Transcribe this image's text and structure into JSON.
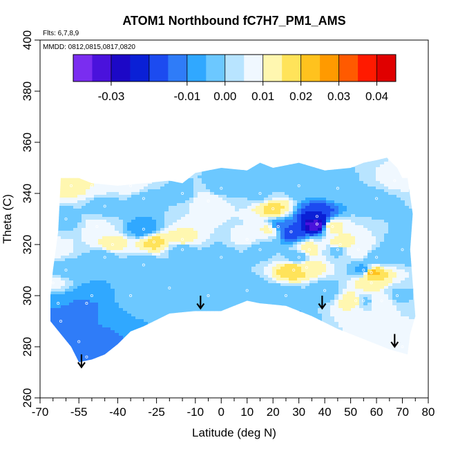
{
  "chart_data": {
    "type": "heatmap",
    "title": "ATOM1 Northbound fC7H7_PM1_AMS",
    "annotations": [
      "Flts: 6,7,8,9",
      "MMDD: 0812,0815,0817,0820"
    ],
    "xlabel": "Latitude (deg N)",
    "ylabel": "Theta (C)",
    "xlim": [
      -70,
      80
    ],
    "ylim": [
      260,
      400
    ],
    "x_ticks": [
      -70,
      -55,
      -40,
      -25,
      -10,
      0,
      10,
      20,
      30,
      40,
      50,
      60,
      70,
      80
    ],
    "x_tick_labels": [
      "-70",
      "-55",
      "-40",
      "-25",
      "-10",
      "0",
      "10",
      "20",
      "30",
      "40",
      "50",
      "60",
      "70",
      "80"
    ],
    "x_minor_ticks": [
      -65,
      -60,
      -50,
      -45,
      -35,
      -30,
      -20,
      -15,
      -5,
      5,
      15,
      25,
      35,
      45,
      55,
      65,
      75
    ],
    "y_ticks": [
      260,
      280,
      300,
      320,
      340,
      360,
      380,
      400
    ],
    "y_tick_labels": [
      "260",
      "280",
      "300",
      "320",
      "340",
      "360",
      "380",
      "400"
    ],
    "colorbar": {
      "min": -0.04,
      "max": 0.045,
      "tick_values": [
        -0.03,
        -0.01,
        0.0,
        0.01,
        0.02,
        0.03,
        0.04
      ],
      "tick_labels": [
        "-0.03",
        "-0.01",
        "0.00",
        "0.01",
        "0.02",
        "0.03",
        "0.04"
      ],
      "boundaries": [
        -0.04,
        -0.035,
        -0.03,
        -0.025,
        -0.02,
        -0.015,
        -0.01,
        -0.005,
        0.0,
        0.005,
        0.01,
        0.015,
        0.02,
        0.025,
        0.03,
        0.035,
        0.04,
        0.045
      ],
      "colors": [
        "#7a2df0",
        "#4a12dc",
        "#1c08c6",
        "#0a20d6",
        "#1c4bf0",
        "#2f7cf8",
        "#30a8ff",
        "#6cc8ff",
        "#b8e4ff",
        "#f0f8ff",
        "#fff7b0",
        "#ffe35a",
        "#ffc21e",
        "#ff9a00",
        "#ff5a00",
        "#ff1a00",
        "#e00000",
        "#b31313"
      ]
    },
    "boundary_upper": [
      [
        -66,
        300
      ],
      [
        -65,
        310
      ],
      [
        -63,
        325
      ],
      [
        -62,
        346
      ],
      [
        -55,
        346
      ],
      [
        -50,
        344
      ],
      [
        -40,
        343
      ],
      [
        -30,
        344
      ],
      [
        -20,
        345
      ],
      [
        -15,
        344
      ],
      [
        -10,
        348
      ],
      [
        0,
        350
      ],
      [
        10,
        349
      ],
      [
        15,
        352
      ],
      [
        20,
        350
      ],
      [
        30,
        352
      ],
      [
        40,
        349
      ],
      [
        50,
        350
      ],
      [
        55,
        352
      ],
      [
        60,
        353
      ],
      [
        64,
        354
      ],
      [
        68,
        350
      ],
      [
        70,
        346
      ],
      [
        72,
        346
      ]
    ],
    "boundary_right": [
      [
        72,
        346
      ],
      [
        74,
        332
      ],
      [
        73,
        318
      ],
      [
        74,
        305
      ],
      [
        75,
        292
      ],
      [
        73,
        285
      ],
      [
        72,
        277
      ]
    ],
    "boundary_lower": [
      [
        72,
        277
      ],
      [
        65,
        279
      ],
      [
        55,
        283
      ],
      [
        45,
        287
      ],
      [
        35,
        292
      ],
      [
        25,
        296
      ],
      [
        15,
        297
      ],
      [
        10,
        298
      ],
      [
        5,
        296
      ],
      [
        0,
        294
      ],
      [
        -10,
        294
      ],
      [
        -20,
        293
      ],
      [
        -30,
        288
      ],
      [
        -35,
        286
      ],
      [
        -40,
        281
      ],
      [
        -45,
        277
      ],
      [
        -50,
        275
      ],
      [
        -55,
        274
      ],
      [
        -58,
        280
      ],
      [
        -62,
        285
      ],
      [
        -66,
        290
      ]
    ],
    "samples": [
      {
        "lat": -60,
        "theta": 330,
        "value": -0.002
      },
      {
        "lat": -45,
        "theta": 335,
        "value": -0.003
      },
      {
        "lat": -30,
        "theta": 338,
        "value": -0.002
      },
      {
        "lat": -15,
        "theta": 340,
        "value": -0.001
      },
      {
        "lat": 0,
        "theta": 342,
        "value": -0.002
      },
      {
        "lat": 15,
        "theta": 340,
        "value": -0.001
      },
      {
        "lat": 30,
        "theta": 343,
        "value": -0.003
      },
      {
        "lat": 45,
        "theta": 342,
        "value": -0.001
      },
      {
        "lat": 60,
        "theta": 338,
        "value": -0.002
      },
      {
        "lat": -60,
        "theta": 310,
        "value": -0.004
      },
      {
        "lat": -45,
        "theta": 315,
        "value": -0.003
      },
      {
        "lat": -30,
        "theta": 312,
        "value": -0.004
      },
      {
        "lat": -15,
        "theta": 318,
        "value": -0.003
      },
      {
        "lat": 0,
        "theta": 315,
        "value": -0.004
      },
      {
        "lat": 15,
        "theta": 318,
        "value": -0.002
      },
      {
        "lat": 30,
        "theta": 315,
        "value": -0.004
      },
      {
        "lat": 45,
        "theta": 318,
        "value": -0.003
      },
      {
        "lat": 60,
        "theta": 315,
        "value": -0.004
      },
      {
        "lat": -50,
        "theta": 300,
        "value": -0.006
      },
      {
        "lat": -35,
        "theta": 300,
        "value": -0.004
      },
      {
        "lat": -20,
        "theta": 303,
        "value": -0.003
      },
      {
        "lat": -5,
        "theta": 300,
        "value": -0.003
      },
      {
        "lat": 10,
        "theta": 302,
        "value": -0.003
      },
      {
        "lat": 25,
        "theta": 300,
        "value": -0.004
      },
      {
        "lat": 40,
        "theta": 302,
        "value": -0.003
      },
      {
        "lat": 55,
        "theta": 298,
        "value": -0.002
      },
      {
        "lat": 68,
        "theta": 300,
        "value": -0.001
      },
      {
        "lat": -62,
        "theta": 290,
        "value": -0.012
      },
      {
        "lat": -55,
        "theta": 282,
        "value": -0.011
      },
      {
        "lat": -52,
        "theta": 276,
        "value": -0.013
      },
      {
        "lat": -52,
        "theta": 297,
        "value": -0.011
      },
      {
        "lat": -63,
        "theta": 297,
        "value": -0.01
      },
      {
        "lat": -30,
        "theta": 326,
        "value": -0.008
      },
      {
        "lat": 22,
        "theta": 327,
        "value": -0.012
      },
      {
        "lat": 27,
        "theta": 325,
        "value": -0.018
      },
      {
        "lat": 37,
        "theta": 328,
        "value": -0.034
      },
      {
        "lat": 37,
        "theta": 331,
        "value": -0.02
      },
      {
        "lat": 55,
        "theta": 310,
        "value": -0.008
      },
      {
        "lat": 70,
        "theta": 318,
        "value": -0.005
      },
      {
        "lat": 25,
        "theta": 290,
        "value": -0.006
      },
      {
        "lat": -58,
        "theta": 343,
        "value": 0.012
      },
      {
        "lat": -50,
        "theta": 343,
        "value": 0.01
      },
      {
        "lat": -35,
        "theta": 343,
        "value": 0.008
      },
      {
        "lat": -65,
        "theta": 318,
        "value": 0.007
      },
      {
        "lat": -65,
        "theta": 305,
        "value": 0.006
      },
      {
        "lat": -48,
        "theta": 327,
        "value": 0.006
      },
      {
        "lat": -42,
        "theta": 320,
        "value": 0.012
      },
      {
        "lat": -26,
        "theta": 321,
        "value": 0.016
      },
      {
        "lat": -15,
        "theta": 322,
        "value": 0.012
      },
      {
        "lat": -5,
        "theta": 337,
        "value": 0.01
      },
      {
        "lat": 20,
        "theta": 334,
        "value": 0.016
      },
      {
        "lat": 19,
        "theta": 326,
        "value": 0.012
      },
      {
        "lat": 28,
        "theta": 310,
        "value": 0.018
      },
      {
        "lat": 33,
        "theta": 311,
        "value": 0.014
      },
      {
        "lat": 34,
        "theta": 318,
        "value": 0.012
      },
      {
        "lat": 43,
        "theta": 327,
        "value": 0.012
      },
      {
        "lat": 46,
        "theta": 320,
        "value": 0.015
      },
      {
        "lat": 53,
        "theta": 318,
        "value": 0.01
      },
      {
        "lat": 58,
        "theta": 309,
        "value": 0.022
      },
      {
        "lat": 58,
        "theta": 305,
        "value": 0.015
      },
      {
        "lat": 52,
        "theta": 298,
        "value": 0.015
      },
      {
        "lat": 62,
        "theta": 298,
        "value": 0.01
      },
      {
        "lat": 70,
        "theta": 280,
        "value": 0.009
      },
      {
        "lat": 67,
        "theta": 345,
        "value": 0.006
      },
      {
        "lat": 10,
        "theta": 322,
        "value": 0.006
      }
    ],
    "arrows": [
      {
        "lat": -54,
        "theta_from": 277,
        "theta_to": 272
      },
      {
        "lat": -8,
        "theta_from": 300,
        "theta_to": 295
      },
      {
        "lat": 39,
        "theta_from": 300,
        "theta_to": 295
      },
      {
        "lat": 67,
        "theta_from": 285,
        "theta_to": 280
      }
    ]
  }
}
